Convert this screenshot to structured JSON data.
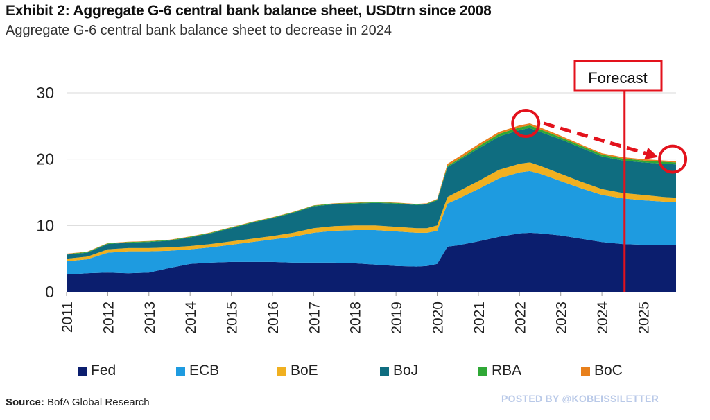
{
  "header": {
    "title": "Exhibit 2: Aggregate G-6 central bank balance sheet, USDtrn since 2008",
    "subtitle": "Aggregate G-6 central bank balance sheet to decrease in 2024"
  },
  "footer": {
    "source_label": "Source:",
    "source_text": "BofA Global Research",
    "posted_by": "POSTED BY @KOBEISSILETTER"
  },
  "chart_data": {
    "type": "area",
    "stacked": true,
    "title": "Exhibit 2: Aggregate G-6 central bank balance sheet, USDtrn since 2008",
    "subtitle": "Aggregate G-6 central bank balance sheet to decrease in 2024",
    "ylim": [
      0,
      30
    ],
    "yticks": [
      0,
      10,
      20,
      30
    ],
    "xlim": [
      2011,
      2025.8
    ],
    "xticks": [
      "2011",
      "2012",
      "2013",
      "2014",
      "2015",
      "2016",
      "2017",
      "2018",
      "2019",
      "2020",
      "2021",
      "2022",
      "2023",
      "2024",
      "2025"
    ],
    "grid": true,
    "legend_position": "bottom",
    "x": [
      2011.0,
      2011.5,
      2012.0,
      2012.5,
      2013.0,
      2013.5,
      2014.0,
      2014.5,
      2015.0,
      2015.5,
      2016.0,
      2016.5,
      2017.0,
      2017.5,
      2018.0,
      2018.5,
      2019.0,
      2019.5,
      2019.75,
      2020.0,
      2020.25,
      2020.5,
      2021.0,
      2021.5,
      2022.0,
      2022.25,
      2022.5,
      2023.0,
      2023.5,
      2024.0,
      2024.5,
      2025.0,
      2025.5,
      2025.8
    ],
    "series": [
      {
        "name": "Fed",
        "color": "#0b1e6e",
        "values": [
          2.6,
          2.8,
          2.9,
          2.8,
          2.9,
          3.6,
          4.2,
          4.4,
          4.5,
          4.5,
          4.5,
          4.4,
          4.4,
          4.4,
          4.3,
          4.1,
          3.9,
          3.8,
          3.9,
          4.2,
          6.8,
          7.0,
          7.6,
          8.3,
          8.8,
          8.9,
          8.8,
          8.5,
          8.0,
          7.5,
          7.2,
          7.1,
          7.0,
          7.0
        ]
      },
      {
        "name": "ECB",
        "color": "#1e9be0",
        "values": [
          2.0,
          2.1,
          3.0,
          3.3,
          3.2,
          2.6,
          2.2,
          2.3,
          2.6,
          3.0,
          3.4,
          3.9,
          4.5,
          4.8,
          5.0,
          5.2,
          5.2,
          5.1,
          5.0,
          5.0,
          6.5,
          7.0,
          7.9,
          8.8,
          9.2,
          9.3,
          9.0,
          8.2,
          7.6,
          7.1,
          6.9,
          6.7,
          6.6,
          6.5
        ]
      },
      {
        "name": "BoE",
        "color": "#f0b020",
        "values": [
          0.4,
          0.4,
          0.5,
          0.5,
          0.5,
          0.5,
          0.5,
          0.5,
          0.5,
          0.5,
          0.5,
          0.6,
          0.7,
          0.7,
          0.7,
          0.7,
          0.7,
          0.7,
          0.7,
          0.8,
          1.0,
          1.1,
          1.2,
          1.3,
          1.3,
          1.3,
          1.2,
          1.1,
          1.0,
          0.9,
          0.8,
          0.8,
          0.7,
          0.7
        ]
      },
      {
        "name": "BoJ",
        "color": "#0f6d80",
        "values": [
          0.6,
          0.6,
          0.8,
          0.8,
          0.9,
          1.0,
          1.3,
          1.6,
          2.0,
          2.4,
          2.7,
          3.0,
          3.3,
          3.3,
          3.3,
          3.4,
          3.5,
          3.5,
          3.6,
          3.8,
          4.5,
          4.6,
          4.9,
          5.0,
          5.1,
          5.2,
          5.1,
          5.2,
          5.1,
          4.9,
          4.9,
          4.9,
          5.0,
          5.0
        ]
      },
      {
        "name": "RBA",
        "color": "#2fa836",
        "values": [
          0.1,
          0.1,
          0.1,
          0.1,
          0.1,
          0.1,
          0.1,
          0.1,
          0.1,
          0.1,
          0.1,
          0.1,
          0.1,
          0.1,
          0.1,
          0.1,
          0.1,
          0.1,
          0.1,
          0.1,
          0.2,
          0.2,
          0.3,
          0.4,
          0.4,
          0.4,
          0.4,
          0.3,
          0.3,
          0.3,
          0.3,
          0.3,
          0.3,
          0.3
        ]
      },
      {
        "name": "BoC",
        "color": "#e8801c",
        "values": [
          0.05,
          0.05,
          0.05,
          0.05,
          0.05,
          0.05,
          0.05,
          0.05,
          0.05,
          0.05,
          0.05,
          0.05,
          0.05,
          0.05,
          0.05,
          0.05,
          0.05,
          0.05,
          0.05,
          0.1,
          0.3,
          0.35,
          0.35,
          0.3,
          0.3,
          0.3,
          0.3,
          0.25,
          0.2,
          0.2,
          0.2,
          0.2,
          0.2,
          0.2
        ]
      }
    ],
    "annotations": {
      "forecast_label": "Forecast",
      "forecast_x": 2024.55,
      "trend_arrow_from_x": 2022.15,
      "trend_arrow_to_x": 2025.6,
      "accent_color": "#e3121c"
    }
  }
}
